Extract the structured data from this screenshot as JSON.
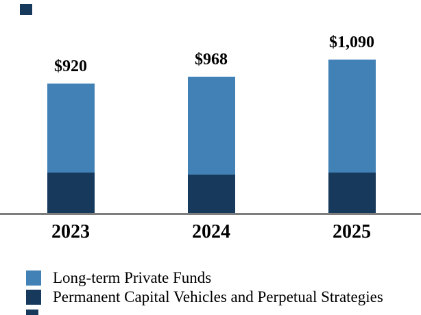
{
  "chart_data": {
    "type": "bar",
    "stacked": true,
    "title": "",
    "xlabel": "",
    "ylabel": "",
    "categories": [
      "2023",
      "2024",
      "2025"
    ],
    "series": [
      {
        "name": "Long-term Private Funds",
        "color": "#4181B6",
        "values": [
          635,
          696,
          803
        ]
      },
      {
        "name": "Permanent Capital Vehicles and Perpetual Strategies",
        "color": "#16395C",
        "values": [
          285,
          272,
          287
        ]
      }
    ],
    "totals": [
      920,
      968,
      1090
    ],
    "total_labels": [
      "$920",
      "$968",
      "$1,090"
    ],
    "ylim": [
      0,
      1100
    ],
    "grid": false,
    "y_axis_shown": false,
    "legend_position": "bottom-left",
    "axis_color": "#7D7D7D",
    "label_color": "#000000"
  },
  "artifacts": {
    "top_left_partial_swatch_color": "#16395C",
    "bottom_left_partial_swatch_color": "#16395C"
  }
}
